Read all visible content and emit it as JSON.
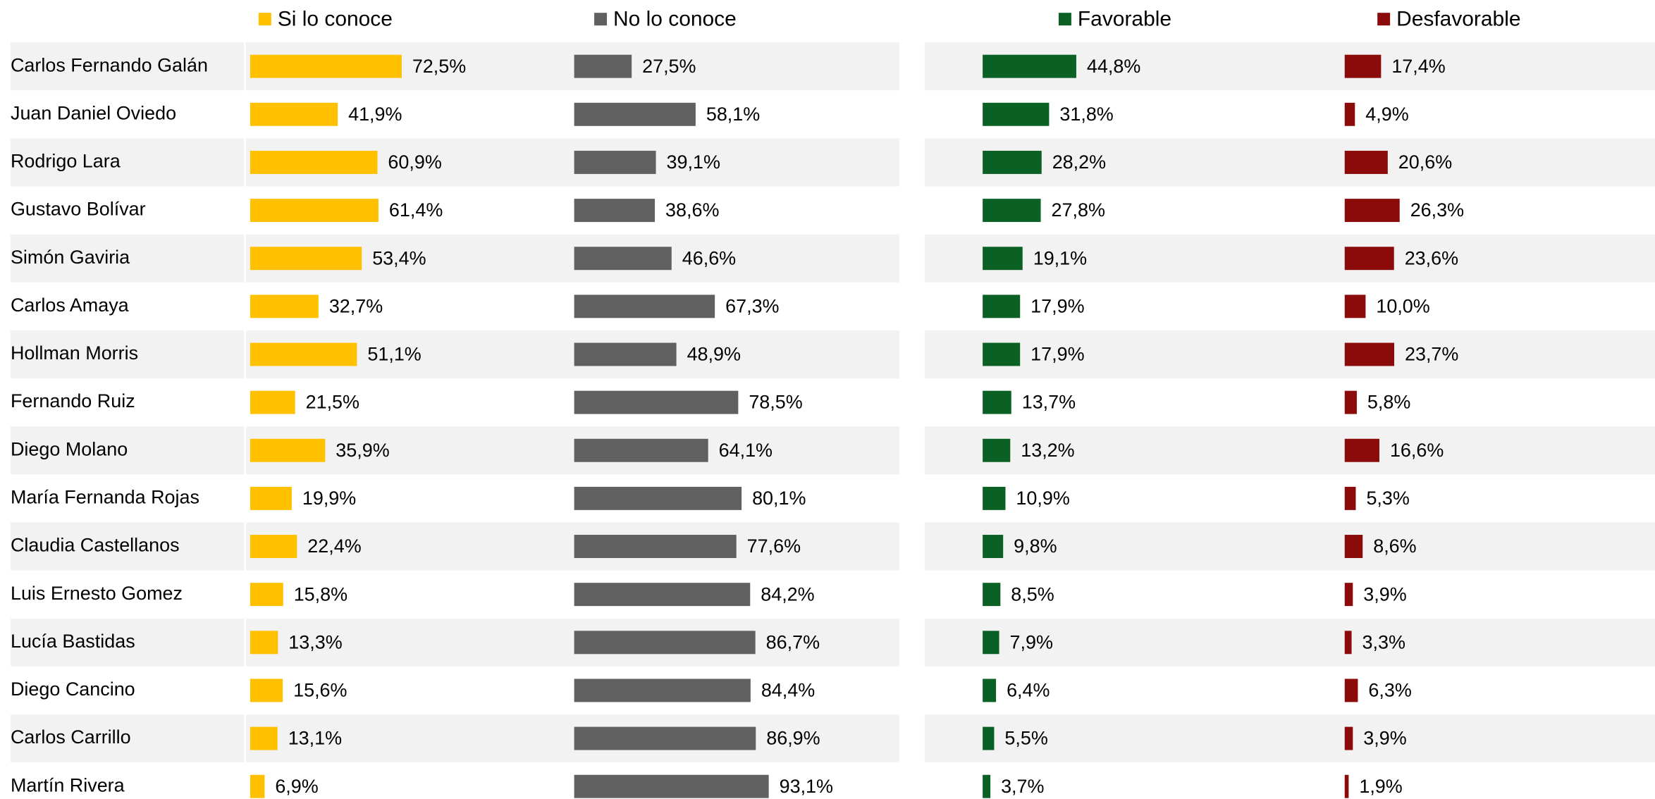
{
  "chart_data": {
    "type": "bar",
    "orientation": "horizontal",
    "categories": [
      "Carlos Fernando Galán",
      "Juan Daniel Oviedo",
      "Rodrigo Lara",
      "Gustavo Bolívar",
      "Simón Gaviria",
      "Carlos Amaya",
      "Hollman Morris",
      "Fernando Ruiz",
      "Diego Molano",
      "María Fernanda Rojas",
      "Claudia Castellanos",
      "Luis Ernesto Gomez",
      "Lucía Bastidas",
      "Diego Cancino",
      "Carlos Carrillo",
      "Martín Rivera"
    ],
    "series": [
      {
        "name": "Si lo conoce",
        "color": "#ffc000",
        "values": [
          72.5,
          41.9,
          60.9,
          61.4,
          53.4,
          32.7,
          51.1,
          21.5,
          35.9,
          19.9,
          22.4,
          15.8,
          13.3,
          15.6,
          13.1,
          6.9
        ],
        "value_labels": [
          "72,5%",
          "41,9%",
          "60,9%",
          "61,4%",
          "53,4%",
          "32,7%",
          "51,1%",
          "21,5%",
          "35,9%",
          "19,9%",
          "22,4%",
          "15,8%",
          "13,3%",
          "15,6%",
          "13,1%",
          "6,9%"
        ]
      },
      {
        "name": "No lo conoce",
        "color": "#606060",
        "values": [
          27.5,
          58.1,
          39.1,
          38.6,
          46.6,
          67.3,
          48.9,
          78.5,
          64.1,
          80.1,
          77.6,
          84.2,
          86.7,
          84.4,
          86.9,
          93.1
        ],
        "value_labels": [
          "27,5%",
          "58,1%",
          "39,1%",
          "38,6%",
          "46,6%",
          "67,3%",
          "48,9%",
          "78,5%",
          "64,1%",
          "80,1%",
          "77,6%",
          "84,2%",
          "86,7%",
          "84,4%",
          "86,9%",
          "93,1%"
        ]
      },
      {
        "name": "Favorable",
        "color": "#0b6124",
        "values": [
          44.8,
          31.8,
          28.2,
          27.8,
          19.1,
          17.9,
          17.9,
          13.7,
          13.2,
          10.9,
          9.8,
          8.5,
          7.9,
          6.4,
          5.5,
          3.7
        ],
        "value_labels": [
          "44,8%",
          "31,8%",
          "28,2%",
          "27,8%",
          "19,1%",
          "17,9%",
          "17,9%",
          "13,7%",
          "13,2%",
          "10,9%",
          "9,8%",
          "8,5%",
          "7,9%",
          "6,4%",
          "5,5%",
          "3,7%"
        ]
      },
      {
        "name": "Desfavorable",
        "color": "#8b0a0a",
        "values": [
          17.4,
          4.9,
          20.6,
          26.3,
          23.6,
          10.0,
          23.7,
          5.8,
          16.6,
          5.3,
          8.6,
          3.9,
          3.3,
          6.3,
          3.9,
          1.9
        ],
        "value_labels": [
          "17,4%",
          "4,9%",
          "20,6%",
          "26,3%",
          "23,6%",
          "10,0%",
          "23,7%",
          "5,8%",
          "16,6%",
          "5,3%",
          "8,6%",
          "3,9%",
          "3,3%",
          "6,3%",
          "3,9%",
          "1,9%"
        ]
      }
    ]
  }
}
